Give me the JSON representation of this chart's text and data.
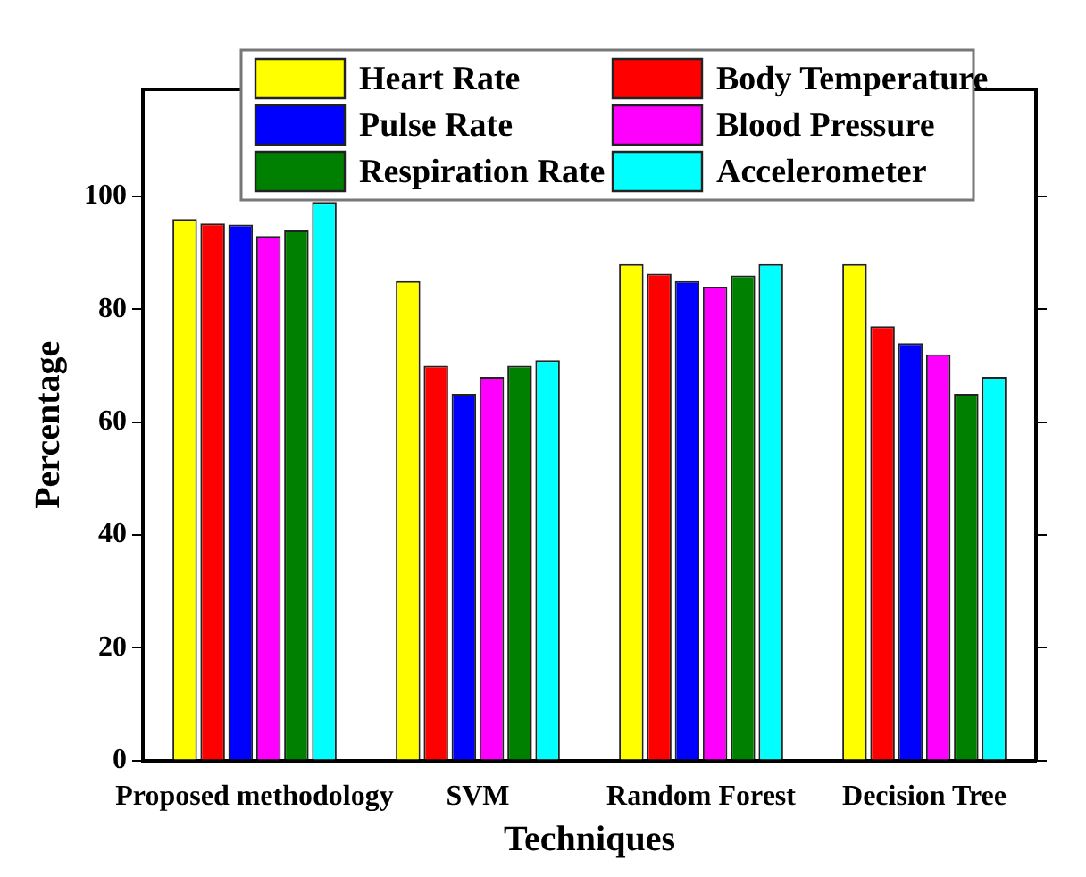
{
  "chart_data": {
    "type": "bar",
    "xlabel": "Techniques",
    "ylabel": "Percentage",
    "categories": [
      "Proposed methodology",
      "SVM",
      "Random Forest",
      "Decision Tree"
    ],
    "series": [
      {
        "name": "Heart Rate",
        "color": "#ffff00",
        "values": [
          96,
          85,
          88,
          88
        ]
      },
      {
        "name": "Body Temperature",
        "color": "#ff0000",
        "values": [
          95.2,
          70,
          86.3,
          77
        ]
      },
      {
        "name": "Pulse Rate",
        "color": "#0000ff",
        "values": [
          95,
          65,
          85,
          74
        ]
      },
      {
        "name": "Blood Pressure",
        "color": "#ff00ff",
        "values": [
          93,
          68,
          84,
          72
        ]
      },
      {
        "name": "Respiration Rate",
        "color": "#008000",
        "values": [
          94,
          70,
          86,
          65
        ]
      },
      {
        "name": "Accelerometer",
        "color": "#00ffff",
        "values": [
          99,
          71,
          88,
          68
        ]
      }
    ],
    "ylim": [
      0,
      119
    ],
    "yticks": [
      0,
      20,
      40,
      60,
      80,
      100
    ],
    "grid": false,
    "legend": "top"
  }
}
